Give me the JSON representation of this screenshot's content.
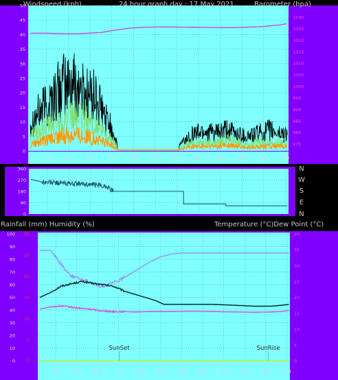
{
  "header": {
    "left": "Windspeed (kph)",
    "center": "24 hour graph day : 17 May 2021",
    "right": "Barometer (hpa)"
  },
  "bottom_header": {
    "left": "Rainfall (mm)  Humidity (%)",
    "right": "Temperature (°C)Dew Point (°C)"
  },
  "direction_labels": [
    "N",
    "W",
    "S",
    "E",
    "N"
  ],
  "colors": {
    "frame": "#7f00ff",
    "plot_bg": "#80ffff",
    "grid": "#6aa6a6",
    "barometer": "#d040d0",
    "gust": "#000000",
    "avg_wind": "#80e070",
    "min_wind": "#ff9900",
    "direction": "#1e5a78",
    "temperature": "#103838",
    "dewpoint": "#e040e0",
    "humidity": "#9a8af0",
    "left_axis_text": "#e0e0e0",
    "right_axis_text": "#ff40ff",
    "rain_axis_text": "#ff3030"
  },
  "chart_data": [
    {
      "type": "line",
      "name": "wind-barometer",
      "title": "24 hour graph day : 17 May 2021",
      "ylabel": "Windspeed (kph)",
      "y2label": "Barometer (hpa)",
      "x_tick_labels": [
        "11",
        "13",
        "15",
        "17",
        "19",
        "21",
        "23",
        "01",
        "03",
        "05",
        "07",
        "09"
      ],
      "x_tick_hours": [
        11,
        13,
        15,
        17,
        19,
        21,
        23,
        25,
        27,
        29,
        31,
        33
      ],
      "x_range_hours": [
        9.3,
        33.3
      ],
      "ylim": [
        0,
        50
      ],
      "y_ticks": [
        0,
        5,
        10,
        15,
        20,
        25,
        30,
        35,
        40,
        45,
        50
      ],
      "y2lim": [
        972,
        1035
      ],
      "y2_ticks": [
        975,
        980,
        985,
        990,
        995,
        1000,
        1005,
        1010,
        1015,
        1020,
        1025,
        1030
      ],
      "grid": true,
      "series": [
        {
          "key": "barometer",
          "axis": "right",
          "x": [
            9.5,
            11,
            12.5,
            14,
            16,
            17,
            18.5,
            20,
            22,
            24,
            26,
            28,
            29.5,
            31,
            32.5,
            33.2
          ],
          "values": [
            1023.0,
            1023.0,
            1022.8,
            1022.8,
            1023.3,
            1024.1,
            1025.1,
            1025.6,
            1025.7,
            1025.6,
            1025.5,
            1025.4,
            1025.6,
            1025.9,
            1026.6,
            1027.2
          ]
        },
        {
          "key": "gust",
          "axis": "left",
          "x": [
            9.5,
            10.5,
            11.5,
            12.5,
            13.5,
            14.5,
            15.5,
            16.3,
            17.0,
            17.5,
            23.2,
            24.5,
            25.5,
            26.5,
            27.5,
            28.5,
            29.5,
            30.5,
            31.5,
            32.5,
            33.2
          ],
          "values": [
            10,
            14,
            18,
            22,
            23,
            20,
            18,
            12,
            8,
            2,
            2,
            6,
            7,
            6,
            7,
            6,
            5,
            6,
            7,
            6,
            6
          ]
        },
        {
          "key": "avg_wind",
          "axis": "left",
          "x": [
            9.5,
            10.5,
            11.5,
            12.5,
            13.5,
            14.5,
            15.5,
            16.3,
            17.0,
            17.5,
            23.2,
            24.5,
            25.5,
            26.5,
            27.5,
            28.5,
            29.5,
            30.5,
            31.5,
            32.5,
            33.2
          ],
          "values": [
            5,
            7,
            9,
            11,
            12,
            11,
            9,
            6,
            4,
            1,
            1,
            3,
            3,
            3,
            4,
            3,
            2,
            3,
            3,
            3,
            3
          ]
        },
        {
          "key": "min_wind",
          "axis": "left",
          "x": [
            9.5,
            10.5,
            11.5,
            12.5,
            13.5,
            14.5,
            15.5,
            16.3,
            17.0,
            17.5,
            23.2,
            24.5,
            25.5,
            26.5,
            27.5,
            28.5,
            29.5,
            30.5,
            31.5,
            32.5,
            33.2
          ],
          "values": [
            2,
            3,
            4,
            5,
            6,
            5,
            4,
            3,
            2,
            0.5,
            0.5,
            1.5,
            1.5,
            1.5,
            2,
            1.5,
            1,
            1.5,
            1.5,
            1.5,
            1.5
          ]
        }
      ]
    },
    {
      "type": "line",
      "name": "wind-direction",
      "x_range_hours": [
        9.3,
        33.3
      ],
      "y_ticks": [
        0,
        90,
        180,
        270,
        360
      ],
      "ylim": [
        0,
        360
      ],
      "grid": true,
      "series": [
        {
          "key": "direction",
          "x": [
            9.5,
            10.5,
            11.5,
            12.5,
            13.5,
            14.5,
            15.5,
            16.5,
            17.1,
            23.6,
            23.6,
            27.5,
            27.5,
            33.2
          ],
          "values": [
            275,
            255,
            250,
            245,
            240,
            238,
            230,
            220,
            180,
            180,
            80,
            80,
            65,
            65
          ]
        }
      ]
    },
    {
      "type": "line",
      "name": "temperature-humidity",
      "ylabel": "Rainfall (mm)  Humidity (%)",
      "y2label": "Temperature (°C)Dew Point (°C)",
      "x_tick_labels": [
        "11",
        "13",
        "15",
        "17",
        "19",
        "21",
        "23",
        "01",
        "03",
        "05",
        "07",
        "09"
      ],
      "x_range_hours": [
        9.3,
        33.3
      ],
      "ylim": [
        0,
        100
      ],
      "y_ticks": [
        0,
        10,
        20,
        30,
        40,
        50,
        60,
        70,
        80,
        90,
        100
      ],
      "y2lim": [
        0,
        40
      ],
      "y2_ticks": [
        0,
        5,
        10,
        15,
        20,
        25,
        30,
        35,
        40
      ],
      "rain_ticks": [
        0,
        5,
        10,
        15,
        20,
        25,
        30
      ],
      "grid": true,
      "annotations": [
        {
          "text": "SunSet",
          "hour": 17.05
        },
        {
          "text": "SunRise",
          "hour": 31.25
        }
      ],
      "series": [
        {
          "key": "humidity",
          "axis": "left",
          "x": [
            9.5,
            10.5,
            11.0,
            11.7,
            12.5,
            13.5,
            14.5,
            15.2,
            16.0,
            17.0,
            18.0,
            19.0,
            20.0,
            21.0,
            22.0,
            23.0,
            24.5,
            26.0,
            28.0,
            30.0,
            32.0,
            33.2
          ],
          "values": [
            87,
            87,
            82,
            74,
            67,
            64,
            62,
            58,
            60,
            63,
            68,
            73,
            78,
            82,
            84,
            85,
            85,
            85,
            85,
            85,
            85,
            85
          ]
        },
        {
          "key": "temperature",
          "axis": "right",
          "x": [
            9.5,
            10.5,
            11.5,
            12.5,
            13.5,
            14.5,
            15.5,
            16.5,
            17.5,
            18.5,
            19.5,
            20.5,
            21.3,
            22.0,
            24.0,
            26.0,
            28.0,
            30.0,
            31.5,
            32.5,
            33.2
          ],
          "values": [
            20.0,
            21.5,
            23.5,
            24.3,
            25.0,
            24.4,
            24.0,
            23.5,
            22.0,
            21.0,
            20.0,
            19.0,
            17.8,
            17.8,
            17.8,
            17.8,
            17.5,
            17.2,
            17.2,
            17.5,
            17.8
          ]
        },
        {
          "key": "dewpoint",
          "axis": "right",
          "x": [
            9.5,
            10.5,
            11.5,
            12.5,
            13.5,
            14.5,
            15.5,
            16.5,
            17.5,
            18.5,
            20.0,
            22.0,
            24.0,
            26.0,
            28.0,
            30.0,
            31.5,
            32.5,
            33.2
          ],
          "values": [
            16.3,
            17.0,
            17.3,
            16.9,
            16.5,
            16.2,
            15.7,
            15.5,
            15.5,
            15.4,
            15.5,
            15.5,
            15.6,
            15.5,
            15.4,
            15.3,
            15.4,
            15.5,
            15.9
          ]
        }
      ]
    }
  ]
}
